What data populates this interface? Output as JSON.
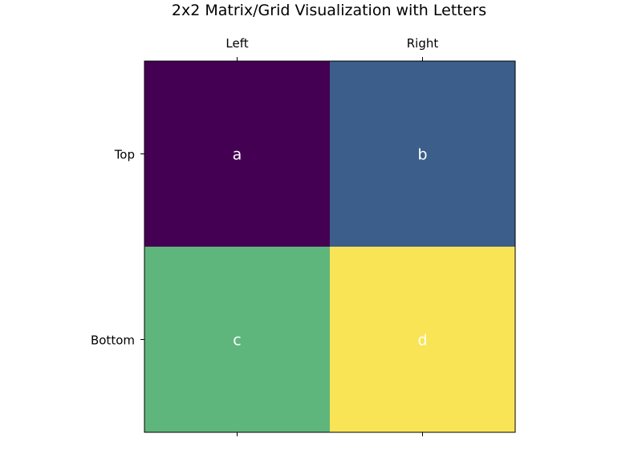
{
  "chart_data": {
    "type": "heatmap",
    "title": "2x2 Matrix/Grid Visualization with Letters",
    "xlabel": "",
    "ylabel": "",
    "x_categories": [
      "Left",
      "Right"
    ],
    "y_categories": [
      "Top",
      "Bottom"
    ],
    "x_tick_position": "top",
    "grid": false,
    "cells": [
      {
        "row": 0,
        "col": 0,
        "label": "a",
        "color": "#440154"
      },
      {
        "row": 0,
        "col": 1,
        "label": "b",
        "color": "#3b5e8a"
      },
      {
        "row": 1,
        "col": 0,
        "label": "c",
        "color": "#5fb67d"
      },
      {
        "row": 1,
        "col": 1,
        "label": "d",
        "color": "#f8e455"
      }
    ]
  }
}
